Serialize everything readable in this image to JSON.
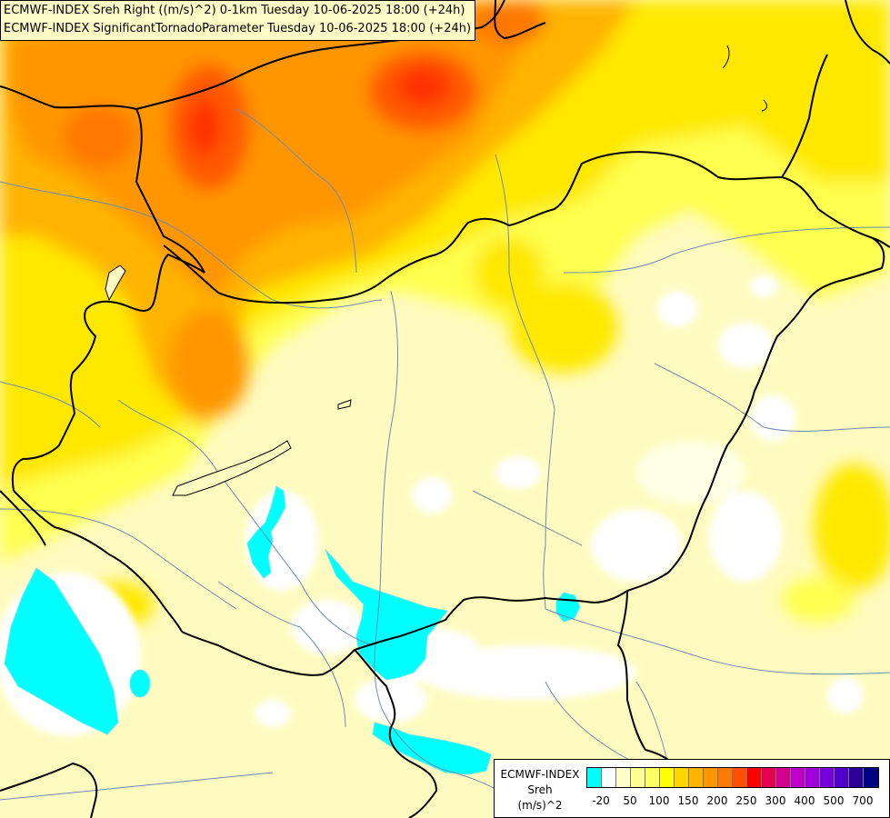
{
  "title": {
    "line1": "ECMWF-INDEX Sreh Right ((m/s)^2) 0-1km Tuesday 10-06-2025 18:00 (+24h)",
    "line2": "ECMWF-INDEX SignificantTornadoParameter Tuesday 10-06-2025 18:00 (+24h)"
  },
  "legend": {
    "title1": "ECMWF-INDEX",
    "title2": "Sreh",
    "title3": "(m/s)^2",
    "colors": [
      "#00ffff",
      "#ffffff",
      "#ffffc8",
      "#ffff96",
      "#ffff64",
      "#ffff00",
      "#ffd700",
      "#ffb400",
      "#ff9600",
      "#ff7800",
      "#ff5000",
      "#ff0000",
      "#e60050",
      "#d2008c",
      "#be00c8",
      "#a000dc",
      "#7800dc",
      "#5000c8",
      "#280096",
      "#000080"
    ],
    "labels": [
      "-20",
      "50",
      "100",
      "150",
      "200",
      "250",
      "300",
      "400",
      "500",
      "700"
    ]
  }
}
